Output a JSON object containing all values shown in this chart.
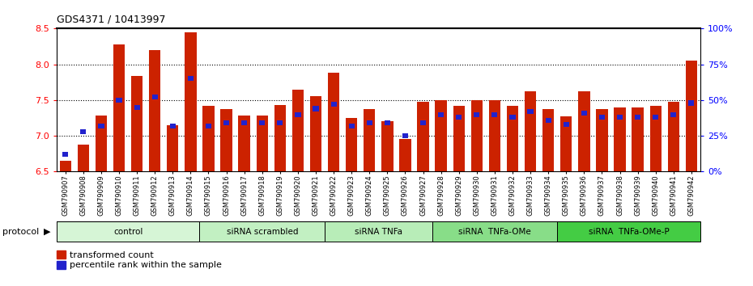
{
  "title": "GDS4371 / 10413997",
  "samples": [
    "GSM790907",
    "GSM790908",
    "GSM790909",
    "GSM790910",
    "GSM790911",
    "GSM790912",
    "GSM790913",
    "GSM790914",
    "GSM790915",
    "GSM790916",
    "GSM790917",
    "GSM790918",
    "GSM790919",
    "GSM790920",
    "GSM790921",
    "GSM790922",
    "GSM790923",
    "GSM790924",
    "GSM790925",
    "GSM790926",
    "GSM790927",
    "GSM790928",
    "GSM790929",
    "GSM790930",
    "GSM790931",
    "GSM790932",
    "GSM790933",
    "GSM790934",
    "GSM790935",
    "GSM790936",
    "GSM790937",
    "GSM790938",
    "GSM790939",
    "GSM790940",
    "GSM790941",
    "GSM790942"
  ],
  "red_values": [
    6.65,
    6.88,
    7.28,
    8.28,
    7.84,
    8.2,
    7.15,
    8.45,
    7.42,
    7.38,
    7.28,
    7.28,
    7.43,
    7.65,
    7.55,
    7.88,
    7.25,
    7.38,
    7.2,
    6.96,
    7.48,
    7.5,
    7.42,
    7.5,
    7.5,
    7.42,
    7.62,
    7.38,
    7.27,
    7.62,
    7.38,
    7.4,
    7.4,
    7.42,
    7.48,
    8.05
  ],
  "blue_percentiles": [
    12,
    28,
    32,
    50,
    45,
    52,
    32,
    65,
    32,
    34,
    34,
    34,
    34,
    40,
    44,
    47,
    32,
    34,
    34,
    25,
    34,
    40,
    38,
    40,
    40,
    38,
    42,
    36,
    33,
    41,
    38,
    38,
    38,
    38,
    40,
    48
  ],
  "ylim_left": [
    6.5,
    8.5
  ],
  "ylim_right": [
    0,
    100
  ],
  "yticks_left": [
    6.5,
    7.0,
    7.5,
    8.0,
    8.5
  ],
  "yticks_right": [
    0,
    25,
    50,
    75,
    100
  ],
  "protocol_groups": [
    {
      "label": "control",
      "start": 0,
      "end": 7,
      "color": "#d6f5d6"
    },
    {
      "label": "siRNA scrambled",
      "start": 8,
      "end": 14,
      "color": "#c2f0c2"
    },
    {
      "label": "siRNA TNFa",
      "start": 15,
      "end": 20,
      "color": "#b8edb8"
    },
    {
      "label": "siRNA  TNFa-OMe",
      "start": 21,
      "end": 27,
      "color": "#90e090"
    },
    {
      "label": "siRNA  TNFa-OMe-P",
      "start": 28,
      "end": 35,
      "color": "#44cc44"
    }
  ],
  "bar_color": "#cc2200",
  "dot_color": "#2222cc",
  "legend_red": "transformed count",
  "legend_blue": "percentile rank within the sample"
}
